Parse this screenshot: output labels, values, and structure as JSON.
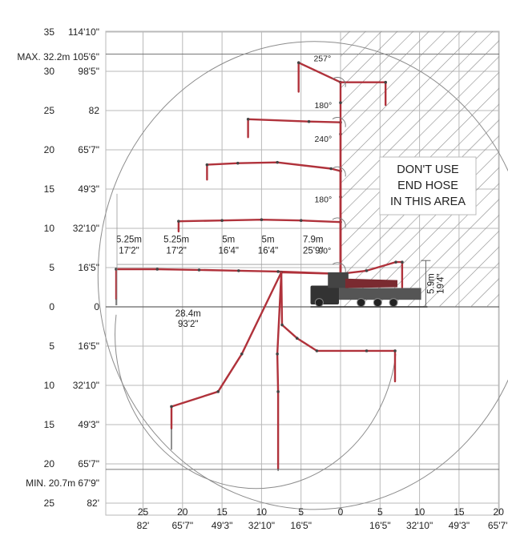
{
  "frame": {
    "background": "#ffffff",
    "grid_color": "#b9b9b9",
    "boom_color": "#b0323b",
    "envelope_color": "#8c8c8c"
  },
  "y_left_metric": [
    {
      "y": 35,
      "label": "35"
    },
    {
      "y": 30,
      "label": "30"
    },
    {
      "y": 25,
      "label": "25"
    },
    {
      "y": 20,
      "label": "20"
    },
    {
      "y": 15,
      "label": "15"
    },
    {
      "y": 10,
      "label": "10"
    },
    {
      "y": 5,
      "label": "5"
    },
    {
      "y": 0,
      "label": "0"
    },
    {
      "y": -5,
      "label": "5"
    },
    {
      "y": -10,
      "label": "10"
    },
    {
      "y": -15,
      "label": "15"
    },
    {
      "y": -20,
      "label": "20"
    },
    {
      "y": -25,
      "label": "25"
    }
  ],
  "y_left_imperial": [
    {
      "y": 35,
      "label": "114'10\""
    },
    {
      "y": 30,
      "label": "98'5\""
    },
    {
      "y": 25,
      "label": "82"
    },
    {
      "y": 20,
      "label": "65'7\""
    },
    {
      "y": 15,
      "label": "49'3\""
    },
    {
      "y": 10,
      "label": "32'10\""
    },
    {
      "y": 5,
      "label": "16'5\""
    },
    {
      "y": 0,
      "label": "0"
    },
    {
      "y": -5,
      "label": "16'5\""
    },
    {
      "y": -10,
      "label": "32'10\""
    },
    {
      "y": -15,
      "label": "49'3\""
    },
    {
      "y": -20,
      "label": "65'7\""
    },
    {
      "y": -25,
      "label": "82'"
    }
  ],
  "x_bottom": [
    {
      "x": -25,
      "metric": "25",
      "imperial": "82'"
    },
    {
      "x": -20,
      "metric": "20",
      "imperial": "65'7\""
    },
    {
      "x": -15,
      "metric": "15",
      "imperial": "49'3\""
    },
    {
      "x": -10,
      "metric": "10",
      "imperial": "32'10\""
    },
    {
      "x": -5,
      "metric": "5",
      "imperial": "16'5\""
    },
    {
      "x": 0,
      "metric": "0",
      "imperial": ""
    },
    {
      "x": 5,
      "metric": "5",
      "imperial": "16'5\""
    },
    {
      "x": 10,
      "metric": "10",
      "imperial": "32'10\""
    },
    {
      "x": 15,
      "metric": "15",
      "imperial": "49'3\""
    },
    {
      "x": 20,
      "metric": "20",
      "imperial": "65'7\""
    }
  ],
  "max_height": {
    "y": 32.2,
    "label": "MAX. 32.2m 105'6\""
  },
  "min_depth": {
    "y": -20.7,
    "label": "MIN. 20.7m 67'9\""
  },
  "no_hose_zone": {
    "x_from": 0,
    "x_to": 21,
    "y_from": 0,
    "y_to": 36
  },
  "warning": {
    "line1": "DON'T USE",
    "line2": "END HOSE",
    "line3": "IN THIS AREA"
  },
  "sections": [
    {
      "m": "5.25m",
      "ft": "17'2\"",
      "x": -28.6
    },
    {
      "m": "5.25m",
      "ft": "17'2\"",
      "x": -22.6
    },
    {
      "m": "5m",
      "ft": "16'4\"",
      "x": -16.0
    },
    {
      "m": "5m",
      "ft": "16'4\"",
      "x": -11.0
    },
    {
      "m": "7.9m",
      "ft": "25'9\"",
      "x": -5.3
    }
  ],
  "reach": {
    "m": "28.4m",
    "ft": "93'2\"",
    "x": -19.3,
    "y": -1.2
  },
  "boom_height": {
    "m": "5.9m",
    "ft": "19'4\"",
    "y_from": 0,
    "y_to": 5.9,
    "x": 11.6
  },
  "angles": [
    {
      "label": "90°",
      "x": -2.0,
      "y": 6.8
    },
    {
      "label": "180°",
      "x": -2.2,
      "y": 13.3
    },
    {
      "label": "240°",
      "x": -2.2,
      "y": 21.0
    },
    {
      "label": "180°",
      "x": -2.2,
      "y": 25.3
    },
    {
      "label": "257°",
      "x": -2.3,
      "y": 31.3
    }
  ],
  "boom_poses": [
    {
      "name": "pose-horizontal",
      "points": [
        [
          0,
          4.2
        ],
        [
          -7.9,
          4.5
        ],
        [
          -12.9,
          4.6
        ],
        [
          -17.9,
          4.7
        ],
        [
          -23.2,
          4.8
        ],
        [
          -28.4,
          4.8
        ],
        [
          -28.4,
          1.0
        ]
      ]
    },
    {
      "name": "pose-low",
      "points": [
        [
          0,
          4.2
        ],
        [
          0,
          10.8
        ],
        [
          -5,
          11.0
        ],
        [
          -10,
          11.1
        ],
        [
          -15,
          11.0
        ],
        [
          -20.5,
          10.9
        ],
        [
          -20.5,
          9.6
        ]
      ]
    },
    {
      "name": "pose-mid",
      "points": [
        [
          0,
          4.2
        ],
        [
          0,
          14
        ],
        [
          0,
          17.3
        ],
        [
          -1.2,
          17.6
        ],
        [
          -8,
          18.4
        ],
        [
          -13,
          18.3
        ],
        [
          -16.9,
          18.1
        ],
        [
          -16.9,
          16.2
        ]
      ]
    },
    {
      "name": "pose-high",
      "points": [
        [
          0,
          4.2
        ],
        [
          0,
          22
        ],
        [
          0,
          23.5
        ],
        [
          -4,
          23.6
        ],
        [
          -11.7,
          23.9
        ],
        [
          -11.7,
          21.6
        ]
      ]
    },
    {
      "name": "pose-top",
      "points": [
        [
          0,
          4.2
        ],
        [
          0,
          26
        ],
        [
          0,
          28.6
        ],
        [
          -5.3,
          31.1
        ],
        [
          -5.3,
          27.4
        ]
      ]
    },
    {
      "name": "pose-top-forward",
      "points": [
        [
          0,
          28.6
        ],
        [
          5.7,
          28.6
        ],
        [
          5.7,
          25.7
        ]
      ]
    },
    {
      "name": "pose-down-left",
      "points": [
        [
          0,
          4.2
        ],
        [
          -7.5,
          4.4
        ],
        [
          -12.5,
          -6
        ],
        [
          -15.5,
          -10.8
        ],
        [
          -21.4,
          -12.7
        ],
        [
          -21.4,
          -15.5
        ]
      ]
    },
    {
      "name": "pose-down-vertical",
      "points": [
        [
          -7.5,
          4.4
        ],
        [
          -8,
          -6
        ],
        [
          -7.9,
          -10.8
        ],
        [
          -7.9,
          -20.6
        ]
      ]
    },
    {
      "name": "pose-down-right",
      "points": [
        [
          -7.5,
          4.4
        ],
        [
          -7.4,
          -2.3
        ],
        [
          -5.5,
          -4
        ],
        [
          -3.0,
          -5.6
        ],
        [
          3.3,
          -5.6
        ],
        [
          6.9,
          -5.6
        ],
        [
          6.9,
          -9.5
        ]
      ]
    },
    {
      "name": "pose-forward",
      "points": [
        [
          0,
          4.2
        ],
        [
          3.3,
          4.6
        ],
        [
          7.0,
          5.7
        ],
        [
          7.8,
          5.7
        ],
        [
          7.8,
          2.5
        ]
      ]
    }
  ],
  "envelope": {
    "cx": -3.3,
    "cy": 4.0,
    "rx": 27.4,
    "ry": 29.8
  },
  "inner_envelope": {
    "cx": -4.5,
    "cy": 0.0,
    "rx": 16.0,
    "ry": 17.6
  },
  "truck": {
    "x_from": -3.8,
    "x_to": 11.0,
    "y_from": 0.0,
    "y_to": 3.6
  }
}
